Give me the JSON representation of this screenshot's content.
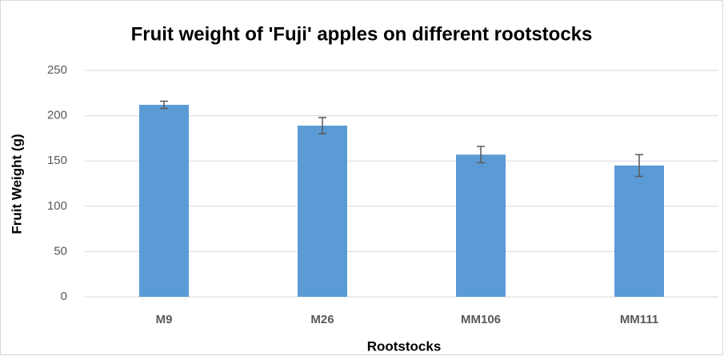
{
  "chart_data": {
    "type": "bar",
    "title": "Fruit weight of 'Fuji' apples on different rootstocks",
    "x_label": "Rootstocks",
    "y_label": "Fruit Weight (g)",
    "categories": [
      "M9",
      "M26",
      "MM106",
      "MM111"
    ],
    "values": [
      212,
      189,
      157,
      145
    ],
    "errors": [
      4,
      9,
      9,
      12
    ],
    "color": "#5b9bd5",
    "error_color": "#595959",
    "ylim": [
      0,
      250
    ],
    "yticks": [
      0,
      50,
      100,
      150,
      200,
      250
    ],
    "grid": true
  }
}
